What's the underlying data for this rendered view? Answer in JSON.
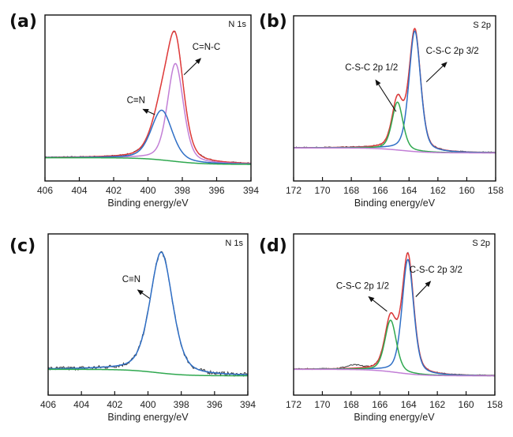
{
  "figure": {
    "layout": "2x2 grid of XPS spectra",
    "colors": {
      "raw": "#3a3a3a",
      "envelope": "#e03a3a",
      "blue": "#2f6fc6",
      "purple": "#c27fd6",
      "green": "#2fa84f",
      "axis": "#111111"
    }
  },
  "chart_data": [
    {
      "id": "a",
      "type": "line",
      "panel_label": "(a)",
      "title": "N 1s",
      "xlabel": "Binding energy/eV",
      "ylabel": "",
      "xlim": [
        406,
        394
      ],
      "ylim": [
        0,
        1
      ],
      "x_reversed": true,
      "xticks": [
        406,
        404,
        402,
        400,
        398,
        396,
        394
      ],
      "yticks": [],
      "grid": false,
      "legend": "none",
      "series": [
        {
          "name": "Raw data",
          "color": "#3a3a3a",
          "kind": "raw",
          "peaks": [
            {
              "center": 398.4,
              "height": 0.66,
              "fwhm": 1.15
            },
            {
              "center": 399.2,
              "height": 0.28,
              "fwhm": 1.4
            }
          ],
          "baseline": [
            406,
            0.14,
            394,
            0.1,
            398.6
          ],
          "noise": 0.004
        },
        {
          "name": "Envelope fit",
          "color": "#e03a3a",
          "kind": "fit",
          "peaks": [
            {
              "center": 398.4,
              "height": 0.66,
              "fwhm": 1.15
            },
            {
              "center": 399.2,
              "height": 0.28,
              "fwhm": 1.4
            }
          ],
          "baseline": [
            406,
            0.14,
            394,
            0.1,
            398.6
          ]
        },
        {
          "name": "C=N-C",
          "color": "#c27fd6",
          "kind": "fit",
          "peaks": [
            {
              "center": 398.4,
              "height": 0.59,
              "fwhm": 1.1
            }
          ],
          "baseline": [
            406,
            0.14,
            394,
            0.1,
            398.6
          ]
        },
        {
          "name": "C≡N",
          "color": "#2f6fc6",
          "kind": "fit",
          "peaks": [
            {
              "center": 399.2,
              "height": 0.3,
              "fwhm": 1.45
            }
          ],
          "baseline": [
            406,
            0.14,
            394,
            0.1,
            398.6
          ]
        },
        {
          "name": "Background",
          "color": "#2fa84f",
          "kind": "fit",
          "peaks": [],
          "baseline": [
            406,
            0.14,
            394,
            0.1,
            398.6
          ]
        }
      ],
      "annotations": [
        {
          "text": "C≡N",
          "x": 400.7,
          "y": 0.47,
          "arrow_to": [
            399.6,
            0.4
          ]
        },
        {
          "text": "C=N-C",
          "x": 396.6,
          "y": 0.79,
          "arrow_to": [
            397.9,
            0.64
          ]
        }
      ]
    },
    {
      "id": "b",
      "type": "line",
      "panel_label": "(b)",
      "title": "S 2p",
      "xlabel": "Binding energy/eV",
      "ylabel": "",
      "xlim": [
        172,
        158
      ],
      "ylim": [
        0,
        1
      ],
      "x_reversed": true,
      "xticks": [
        172,
        170,
        168,
        166,
        164,
        162,
        160,
        158
      ],
      "yticks": [],
      "grid": false,
      "legend": "none",
      "series": [
        {
          "name": "Raw data",
          "color": "#3a3a3a",
          "kind": "raw",
          "peaks": [
            {
              "center": 163.6,
              "height": 0.73,
              "fwhm": 0.95
            },
            {
              "center": 164.8,
              "height": 0.29,
              "fwhm": 0.9
            }
          ],
          "baseline": [
            172,
            0.2,
            158,
            0.17,
            164.5
          ],
          "noise": 0.004
        },
        {
          "name": "Envelope fit",
          "color": "#e03a3a",
          "kind": "fit",
          "peaks": [
            {
              "center": 163.6,
              "height": 0.73,
              "fwhm": 0.95
            },
            {
              "center": 164.8,
              "height": 0.29,
              "fwhm": 0.9
            }
          ],
          "baseline": [
            172,
            0.2,
            158,
            0.17,
            164.5
          ]
        },
        {
          "name": "C-S-C 2p 3/2",
          "color": "#2f6fc6",
          "kind": "fit",
          "peaks": [
            {
              "center": 163.6,
              "height": 0.73,
              "fwhm": 0.95
            }
          ],
          "baseline": [
            172,
            0.2,
            158,
            0.17,
            164.5
          ]
        },
        {
          "name": "C-S-C 2p 1/2",
          "color": "#2fa84f",
          "kind": "fit",
          "peaks": [
            {
              "center": 164.8,
              "height": 0.29,
              "fwhm": 0.9
            }
          ],
          "baseline": [
            172,
            0.2,
            158,
            0.17,
            164.5
          ]
        },
        {
          "name": "Background",
          "color": "#c27fd6",
          "kind": "fit",
          "peaks": [],
          "baseline": [
            172,
            0.2,
            158,
            0.17,
            164.5
          ]
        }
      ],
      "annotations": [
        {
          "text": "C-S-C 2p 1/2",
          "x": 166.6,
          "y": 0.67,
          "arrow_to": [
            164.9,
            0.42
          ]
        },
        {
          "text": "C-S-C 2p 3/2",
          "x": 161.0,
          "y": 0.77,
          "arrow_to": [
            162.8,
            0.6
          ]
        }
      ]
    },
    {
      "id": "c",
      "type": "line",
      "panel_label": "(c)",
      "title": "N 1s",
      "xlabel": "Binding energy/eV",
      "ylabel": "",
      "xlim": [
        406,
        394
      ],
      "ylim": [
        0,
        1
      ],
      "x_reversed": true,
      "xticks": [
        406,
        404,
        402,
        400,
        398,
        396,
        394
      ],
      "yticks": [],
      "grid": false,
      "legend": "none",
      "series": [
        {
          "name": "Raw data",
          "color": "#3a3a3a",
          "kind": "raw",
          "peaks": [
            {
              "center": 399.2,
              "height": 0.75,
              "fwhm": 1.6
            }
          ],
          "baseline": [
            406,
            0.16,
            394,
            0.12,
            399.5
          ],
          "noise": 0.012
        },
        {
          "name": "C≡N",
          "color": "#2f6fc6",
          "kind": "fit",
          "peaks": [
            {
              "center": 399.2,
              "height": 0.75,
              "fwhm": 1.6
            }
          ],
          "baseline": [
            406,
            0.16,
            394,
            0.12,
            399.5
          ]
        },
        {
          "name": "Background",
          "color": "#2fa84f",
          "kind": "fit",
          "peaks": [],
          "baseline": [
            406,
            0.16,
            394,
            0.12,
            399.5
          ]
        }
      ],
      "annotations": [
        {
          "text": "C≡N",
          "x": 401.0,
          "y": 0.7,
          "arrow_to": [
            399.9,
            0.6
          ]
        }
      ]
    },
    {
      "id": "d",
      "type": "line",
      "panel_label": "(d)",
      "title": "S 2p",
      "xlabel": "Binding energy/eV",
      "ylabel": "",
      "xlim": [
        172,
        158
      ],
      "ylim": [
        0,
        1
      ],
      "x_reversed": true,
      "xticks": [
        172,
        170,
        168,
        166,
        164,
        162,
        160,
        158
      ],
      "yticks": [],
      "grid": false,
      "legend": "none",
      "series": [
        {
          "name": "Raw data",
          "color": "#3a3a3a",
          "kind": "raw",
          "peaks": [
            {
              "center": 164.05,
              "height": 0.73,
              "fwhm": 0.95
            },
            {
              "center": 165.25,
              "height": 0.32,
              "fwhm": 0.95
            },
            {
              "center": 167.8,
              "height": 0.02,
              "fwhm": 1.2
            }
          ],
          "baseline": [
            172,
            0.16,
            158,
            0.12,
            164.8
          ],
          "noise": 0.004
        },
        {
          "name": "Envelope fit",
          "color": "#e03a3a",
          "kind": "fit",
          "peaks": [
            {
              "center": 164.05,
              "height": 0.73,
              "fwhm": 0.95
            },
            {
              "center": 165.25,
              "height": 0.32,
              "fwhm": 0.95
            }
          ],
          "baseline": [
            172,
            0.16,
            158,
            0.12,
            164.8
          ]
        },
        {
          "name": "C-S-C 2p 3/2",
          "color": "#2f6fc6",
          "kind": "fit",
          "peaks": [
            {
              "center": 164.05,
              "height": 0.71,
              "fwhm": 0.95
            }
          ],
          "baseline": [
            172,
            0.16,
            158,
            0.12,
            164.8
          ]
        },
        {
          "name": "C-S-C 2p 1/2",
          "color": "#2fa84f",
          "kind": "fit",
          "peaks": [
            {
              "center": 165.25,
              "height": 0.32,
              "fwhm": 0.95
            }
          ],
          "baseline": [
            172,
            0.16,
            158,
            0.12,
            164.8
          ]
        },
        {
          "name": "Background",
          "color": "#c27fd6",
          "kind": "fit",
          "peaks": [],
          "baseline": [
            172,
            0.16,
            158,
            0.12,
            164.8
          ]
        }
      ],
      "annotations": [
        {
          "text": "C-S-C 2p 1/2",
          "x": 167.2,
          "y": 0.66,
          "arrow_to": [
            165.5,
            0.52
          ]
        },
        {
          "text": "C-S-C 2p 3/2",
          "x": 162.1,
          "y": 0.76,
          "arrow_to": [
            163.5,
            0.61
          ]
        }
      ]
    }
  ]
}
